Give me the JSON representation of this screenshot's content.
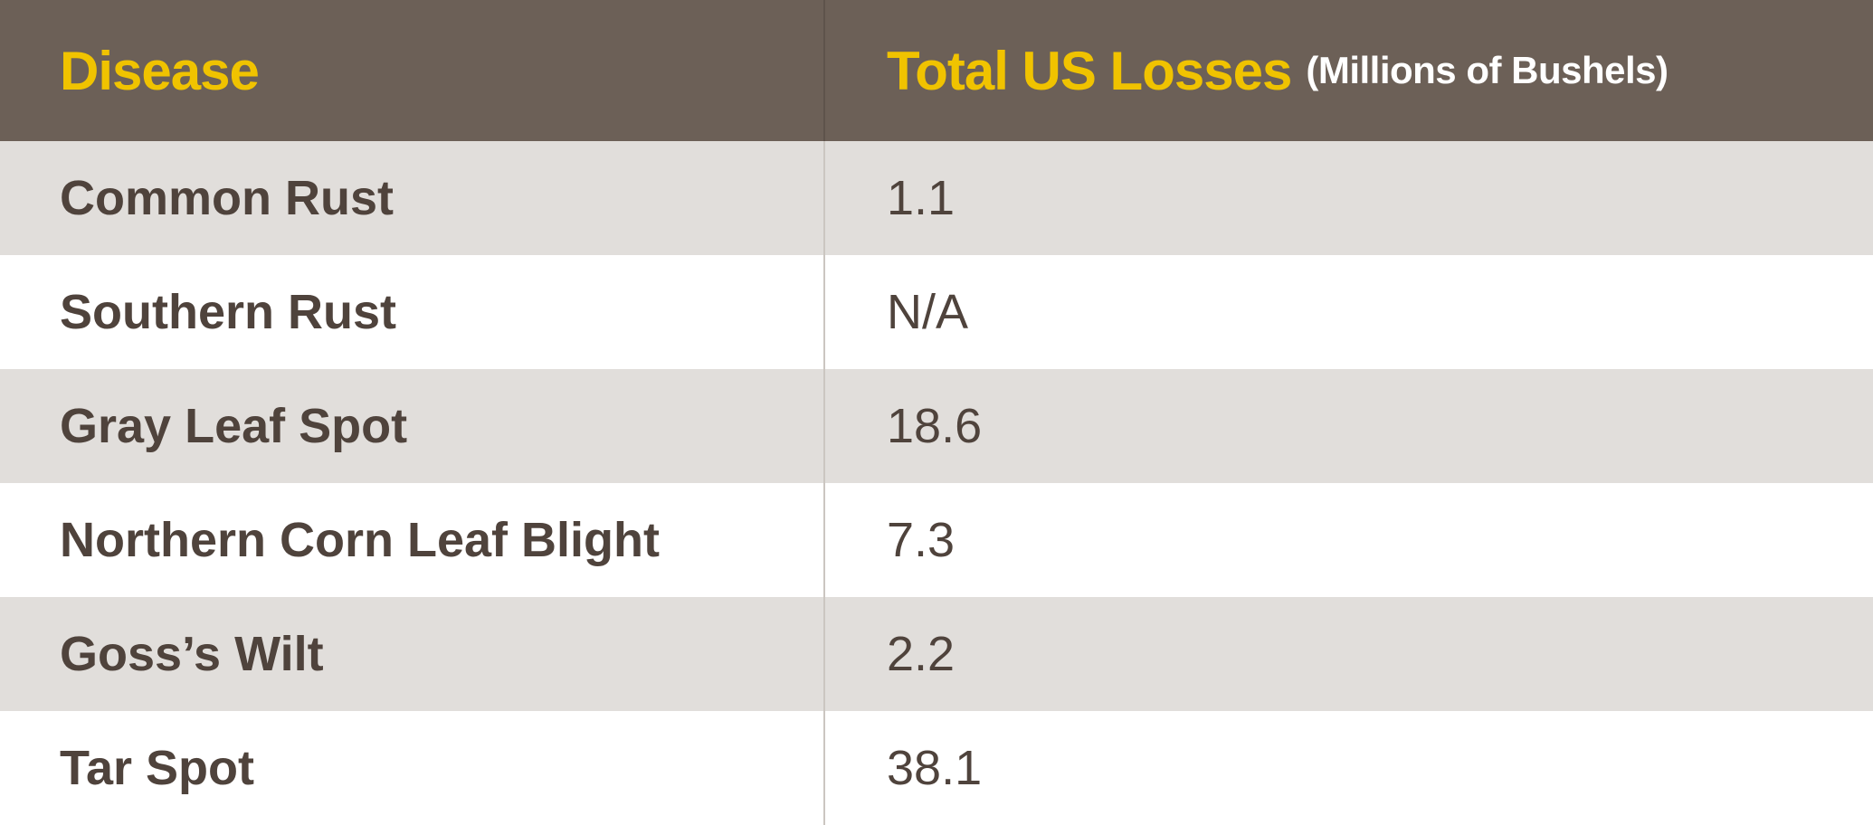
{
  "table": {
    "header": {
      "disease": "Disease",
      "losses": "Total US Losses",
      "unit": "(Millions of Bushels)"
    },
    "rows": [
      [
        "Common Rust",
        "1.1"
      ],
      [
        "Southern Rust",
        "N/A"
      ],
      [
        "Gray Leaf Spot",
        "18.6"
      ],
      [
        "Northern Corn Leaf Blight",
        "7.3"
      ],
      [
        "Goss’s Wilt",
        "2.2"
      ],
      [
        "Tar Spot",
        "38.1"
      ]
    ]
  }
}
